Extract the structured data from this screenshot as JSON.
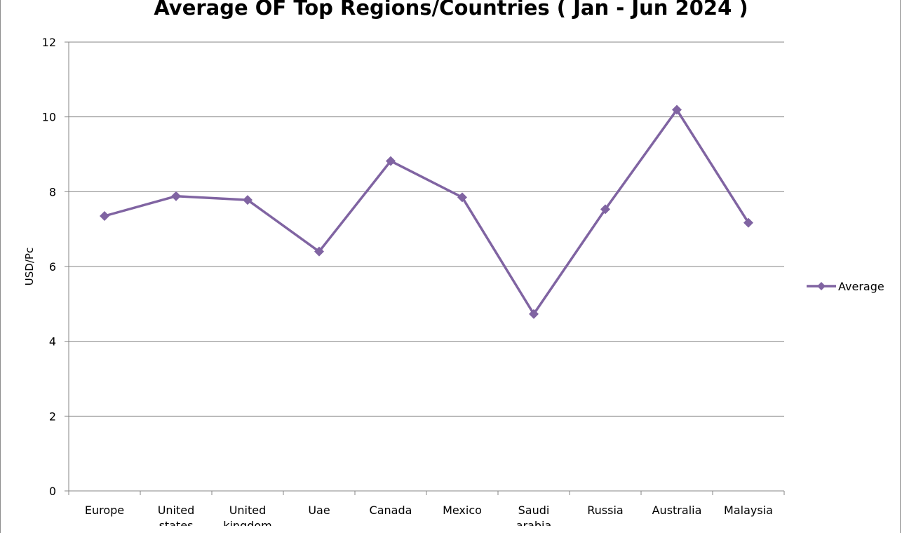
{
  "chart_data": {
    "type": "line",
    "title": "Average OF Top Regions/Countries ( Jan - Jun 2024 )",
    "xlabel": "",
    "ylabel": "USD/Pc",
    "ylim": [
      0,
      12
    ],
    "yticks": [
      0,
      2,
      4,
      6,
      8,
      10,
      12
    ],
    "grid": true,
    "legend_position": "right",
    "color": "#8064A2",
    "categories": [
      [
        "Europe"
      ],
      [
        "United",
        "states"
      ],
      [
        "United",
        "kingdom"
      ],
      [
        "Uae"
      ],
      [
        "Canada"
      ],
      [
        "Mexico"
      ],
      [
        "Saudi",
        "arabia"
      ],
      [
        "Russia"
      ],
      [
        "Australia"
      ],
      [
        "Malaysia"
      ]
    ],
    "series": [
      {
        "name": "Average",
        "values": [
          7.35,
          7.88,
          7.78,
          6.4,
          8.82,
          7.85,
          4.73,
          7.53,
          10.19,
          7.17
        ]
      }
    ]
  }
}
